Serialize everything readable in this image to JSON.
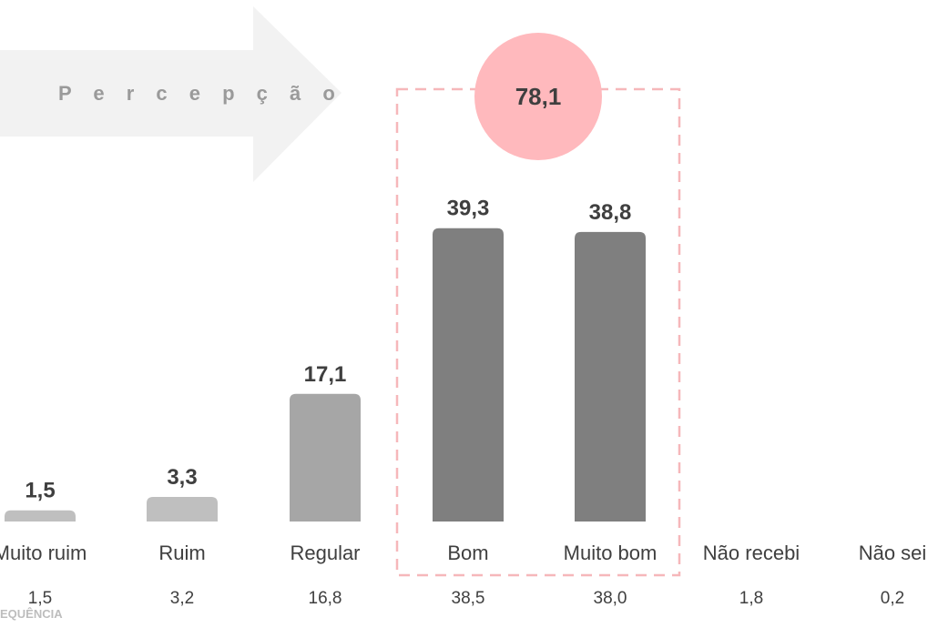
{
  "arrow_label": "P e r c e p ç ã o",
  "highlight": {
    "value": "78,1",
    "circle_color": "#ffb9bd",
    "border_color": "#f6b7ba"
  },
  "footer_label": "EQUÊNCIA",
  "colors": {
    "light_bar": "#bfbfbf",
    "mid_bar": "#a6a6a6",
    "dark_bar": "#7f7f7f",
    "arrow": "#f2f2f2",
    "text": "#3f3f3f"
  },
  "chart_data": {
    "type": "bar",
    "title": "",
    "xlabel": "",
    "ylabel": "",
    "ylim": [
      0,
      45
    ],
    "categories": [
      "Muito ruim",
      "Ruim",
      "Regular",
      "Bom",
      "Muito bom",
      "Não recebi",
      "Não sei"
    ],
    "values": [
      1.5,
      3.3,
      17.1,
      39.3,
      38.8,
      null,
      null
    ],
    "value_labels": [
      "1,5",
      "3,3",
      "17,1",
      "39,3",
      "38,8",
      "",
      ""
    ],
    "frequency_labels": [
      "1,5",
      "3,2",
      "16,8",
      "38,5",
      "38,0",
      "1,8",
      "0,2"
    ],
    "bar_shades": [
      "light_bar",
      "light_bar",
      "mid_bar",
      "dark_bar",
      "dark_bar",
      "",
      ""
    ],
    "highlight_categories": [
      "Bom",
      "Muito bom"
    ]
  }
}
